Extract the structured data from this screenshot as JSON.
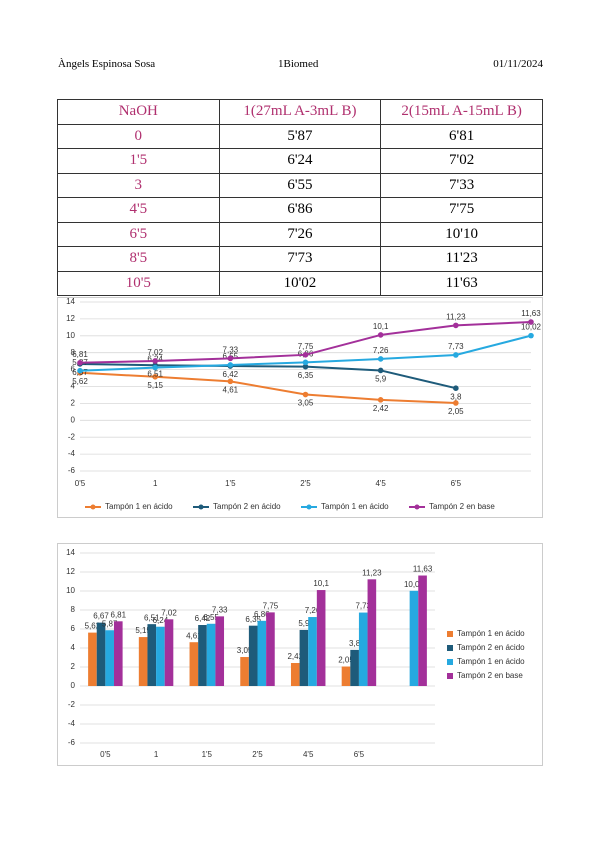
{
  "header": {
    "author": "Àngels Espinosa Sosa",
    "course": "1Biomed",
    "date": "01/11/2024"
  },
  "table": {
    "columns": [
      "NaOH",
      "1(27mL A-3mL B)",
      "2(15mL A-15mL B)"
    ],
    "rows": [
      [
        "0",
        "5'87",
        "6'81"
      ],
      [
        "1'5",
        "6'24",
        "7'02"
      ],
      [
        "3",
        "6'55",
        "7'33"
      ],
      [
        "4'5",
        "6'86",
        "7'75"
      ],
      [
        "6'5",
        "7'26",
        "10'10"
      ],
      [
        "8'5",
        "7'73",
        "11'23"
      ],
      [
        "10'5",
        "10'02",
        "11'63"
      ]
    ]
  },
  "chart_data": [
    {
      "type": "line",
      "categories": [
        "0'5",
        "1",
        "1'5",
        "2'5",
        "4'5",
        "6'5",
        null
      ],
      "series": [
        {
          "name": "Tampón 1 en ácido",
          "color": "#ed7d31",
          "values": [
            5.62,
            5.15,
            4.61,
            3.05,
            2.42,
            2.05,
            null
          ],
          "value_labels": [
            "5,62",
            "5,15",
            "4,61",
            "3,05",
            "2,42",
            "2,05",
            null
          ]
        },
        {
          "name": "Tampón 2 en ácido",
          "color": "#1e5b7a",
          "values": [
            6.67,
            6.51,
            6.42,
            6.35,
            5.9,
            3.8,
            null
          ],
          "value_labels": [
            "6,67",
            "6,51",
            "6,42",
            "6,35",
            "5,9",
            "3,8",
            null
          ]
        },
        {
          "name": "Tampón 1 en ácido",
          "color": "#26a9e0",
          "values": [
            5.87,
            6.24,
            6.55,
            6.86,
            7.26,
            7.73,
            10.02
          ],
          "value_labels": [
            "5,87",
            "6,24",
            "6,55",
            "6,86",
            "7,26",
            "7,73",
            "10,02"
          ]
        },
        {
          "name": "Tampón 2 en base",
          "color": "#a3309a",
          "values": [
            6.81,
            7.02,
            7.33,
            7.75,
            10.1,
            11.23,
            11.63
          ],
          "value_labels": [
            "6,81",
            "7,02",
            "7,33",
            "7,75",
            "10,1",
            "11,23",
            "11,63"
          ]
        }
      ],
      "ylim": [
        -6,
        14
      ],
      "yticks": [
        -6,
        -4,
        -2,
        0,
        2,
        4,
        6,
        8,
        10,
        12,
        14
      ],
      "grid": true,
      "legend": "bottom"
    },
    {
      "type": "bar",
      "categories": [
        "0'5",
        "1",
        "1'5",
        "2'5",
        "4'5",
        "6'5",
        null
      ],
      "series": [
        {
          "name": "Tampón 1 en ácido",
          "color": "#ed7d31",
          "values": [
            5.62,
            5.15,
            4.61,
            3.05,
            2.42,
            2.05,
            null
          ],
          "value_labels": [
            "5,62",
            "5,15",
            "4,61",
            "3,05",
            "2,42",
            "2,05",
            null
          ]
        },
        {
          "name": "Tampón 2 en ácido",
          "color": "#1e5b7a",
          "values": [
            6.67,
            6.51,
            6.42,
            6.35,
            5.9,
            3.8,
            null
          ],
          "value_labels": [
            "6,67",
            "6,51",
            "6,42",
            "6,35",
            "5,9",
            "3,8",
            null
          ]
        },
        {
          "name": "Tampón 1 en ácido",
          "color": "#26a9e0",
          "values": [
            5.87,
            6.24,
            6.55,
            6.86,
            7.26,
            7.73,
            10.02
          ],
          "value_labels": [
            "5,87",
            "6,24",
            "6,55",
            "6,86",
            "7,26",
            "7,73",
            "10,02"
          ]
        },
        {
          "name": "Tampón 2 en base",
          "color": "#a3309a",
          "values": [
            6.81,
            7.02,
            7.33,
            7.75,
            10.1,
            11.23,
            11.63
          ],
          "value_labels": [
            "6,81",
            "7,02",
            "7,33",
            "7,75",
            "10,1",
            "11,23",
            "11,63"
          ]
        }
      ],
      "ylim": [
        -6,
        14
      ],
      "yticks": [
        -6,
        -4,
        -2,
        0,
        2,
        4,
        6,
        8,
        10,
        12,
        14
      ],
      "grid": true,
      "legend": "right"
    }
  ]
}
